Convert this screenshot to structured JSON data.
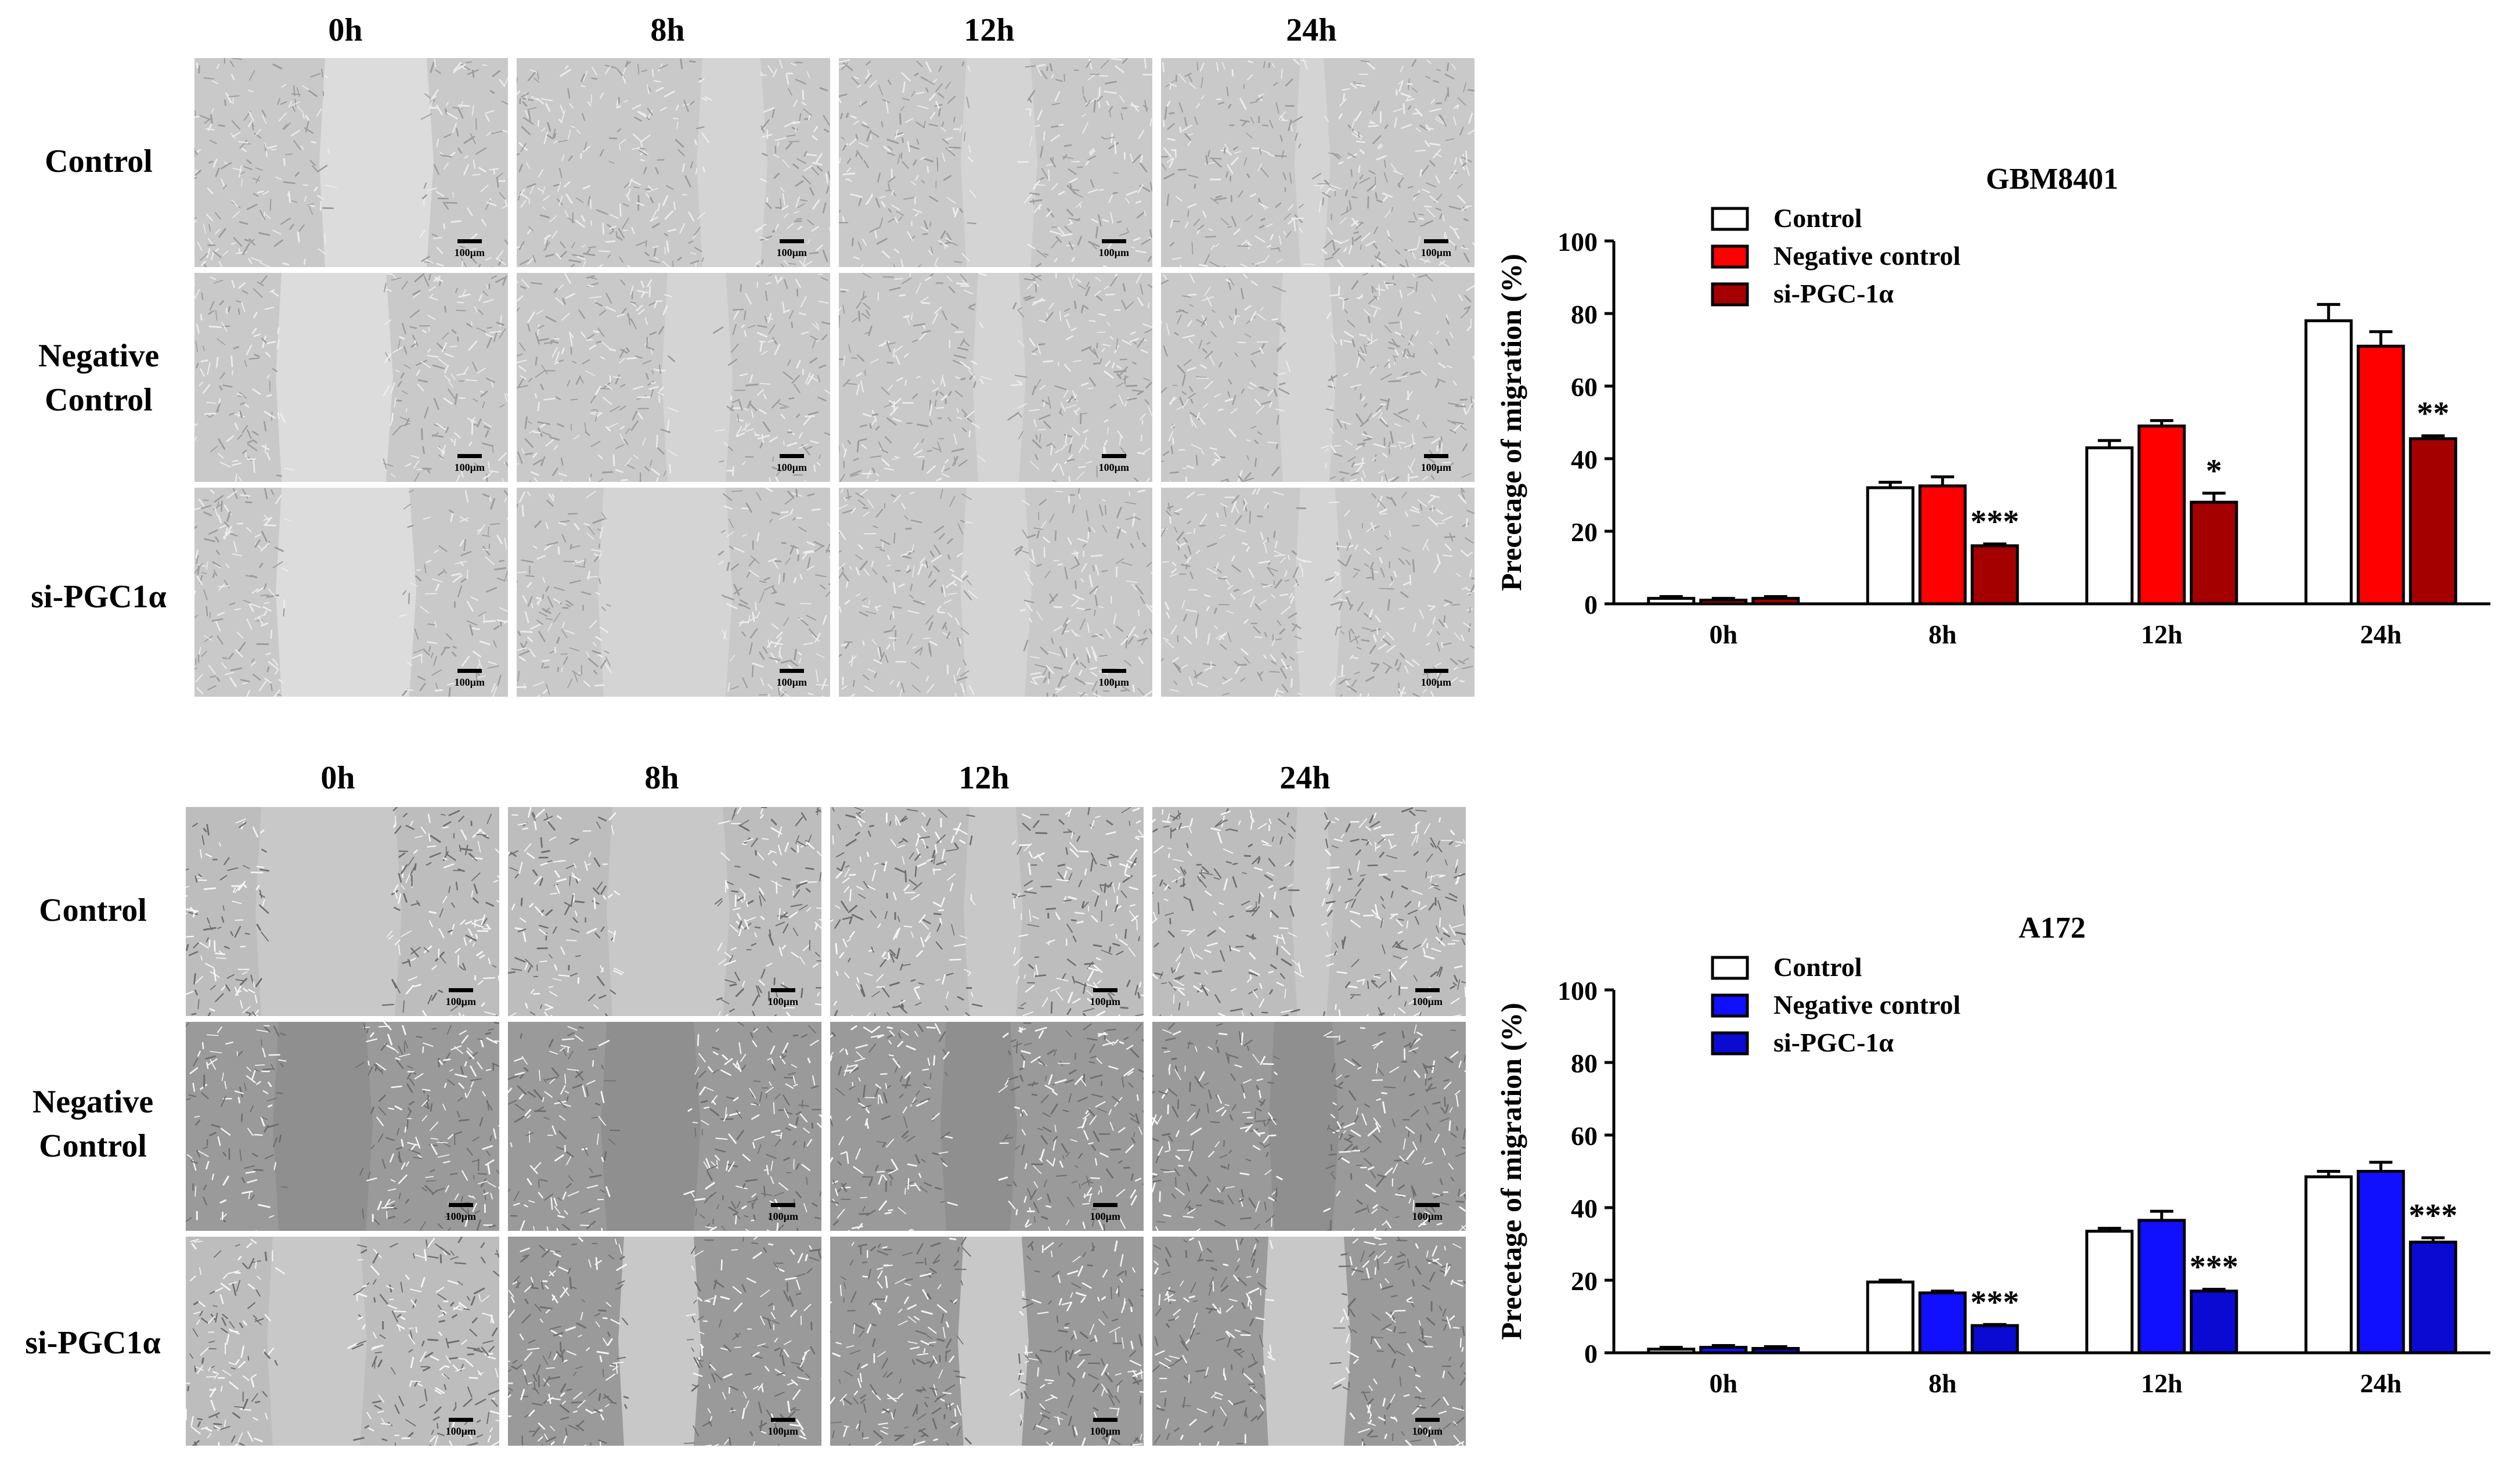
{
  "panels": [
    {
      "time_labels": [
        "0h",
        "8h",
        "12h",
        "24h"
      ],
      "row_labels": [
        "Control",
        "Negative\nControl",
        "si-PGC1α"
      ],
      "scale_bar": "100µm",
      "tone": "light"
    },
    {
      "time_labels": [
        "0h",
        "8h",
        "12h",
        "24h"
      ],
      "row_labels": [
        "Control",
        "Negative\nControl",
        "si-PGC1α"
      ],
      "scale_bar": "100µm",
      "tone": "contrast"
    }
  ],
  "chart_data": [
    {
      "type": "bar",
      "title": "GBM8401",
      "ylabel": "Precetage of migration (%)",
      "xlabel": "",
      "categories": [
        "0h",
        "8h",
        "12h",
        "24h"
      ],
      "ylim": [
        0,
        100
      ],
      "yticks": [
        0,
        20,
        40,
        60,
        80,
        100
      ],
      "series": [
        {
          "name": "Control",
          "color": "#ffffff",
          "values": [
            1.5,
            32,
            43,
            78
          ],
          "errors": [
            0.5,
            1.5,
            2,
            4.5
          ]
        },
        {
          "name": "Negative control",
          "color": "#ff0000",
          "values": [
            1,
            32.5,
            49,
            71
          ],
          "errors": [
            0.5,
            2.5,
            1.5,
            4
          ]
        },
        {
          "name": "si-PGC-1α",
          "color": "#a50000",
          "values": [
            1.5,
            16,
            28,
            45.5
          ],
          "errors": [
            0.5,
            0.5,
            2.5,
            0.8
          ]
        }
      ],
      "significance": [
        "",
        "***",
        "*",
        "**"
      ]
    },
    {
      "type": "bar",
      "title": "A172",
      "ylabel": "Precetage of migration (%)",
      "xlabel": "",
      "categories": [
        "0h",
        "8h",
        "12h",
        "24h"
      ],
      "ylim": [
        0,
        100
      ],
      "yticks": [
        0,
        20,
        40,
        60,
        80,
        100
      ],
      "series": [
        {
          "name": "Control",
          "color": "#ffffff",
          "values": [
            1,
            19.5,
            33.5,
            48.5
          ],
          "errors": [
            0.5,
            0.5,
            0.8,
            1.5
          ]
        },
        {
          "name": "Negative control",
          "color": "#1010ff",
          "values": [
            1.5,
            16.5,
            36.5,
            50
          ],
          "errors": [
            0.5,
            0.5,
            2.5,
            2.5
          ]
        },
        {
          "name": "si-PGC-1α",
          "color": "#0a0ad2",
          "values": [
            1.2,
            7.5,
            17,
            30.5
          ],
          "errors": [
            0.5,
            0.3,
            0.5,
            1.2
          ]
        }
      ],
      "significance": [
        "",
        "***",
        "***",
        "***"
      ]
    }
  ]
}
